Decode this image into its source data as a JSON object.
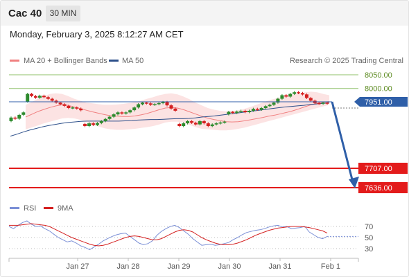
{
  "header": {
    "instrument": "Cac 40",
    "timeframe": "30 MIN"
  },
  "datetime": "Monday, February 3, 2025 8:12:27 AM CET",
  "legend": {
    "ma_bb": "MA 20 + Bollinger Bands",
    "ma50": "MA 50",
    "credit": "Research © 2025 Trading Central"
  },
  "rsi_legend": {
    "rsi": "RSI",
    "ma9": "9MA"
  },
  "colors": {
    "ma_bb": "#f08080",
    "ma50": "#2c4f8a",
    "bull": "#2e8b2e",
    "bear": "#d42020",
    "green_level": "#8fc16a",
    "red_level": "#e31b1b",
    "arrow": "#2f5fa8",
    "rsi": "#7a8fd6"
  },
  "chart_data": {
    "type": "candlestick",
    "instrument": "Cac 40",
    "interval": "30 MIN",
    "x_ticks": [
      "Jan 27",
      "Jan 28",
      "Jan 29",
      "Jan 30",
      "Jan 31",
      "Feb 1"
    ],
    "price_levels": [
      {
        "label": "8050.00",
        "value": 8050,
        "kind": "resistance"
      },
      {
        "label": "8000.00",
        "value": 8000,
        "kind": "resistance"
      },
      {
        "label": "7951.00",
        "value": 7951,
        "kind": "current"
      },
      {
        "label": "7707.00",
        "value": 7707,
        "kind": "target"
      },
      {
        "label": "7636.00",
        "value": 7636,
        "kind": "target"
      }
    ],
    "projection": {
      "from": 7951,
      "to": 7636,
      "direction": "down"
    },
    "candles": [
      {
        "o": 7880,
        "c": 7893
      },
      {
        "o": 7893,
        "c": 7889
      },
      {
        "o": 7889,
        "c": 7903
      },
      {
        "o": 7903,
        "c": 7912
      },
      {
        "o": 7952,
        "c": 7980
      },
      {
        "o": 7980,
        "c": 7972
      },
      {
        "o": 7972,
        "c": 7966
      },
      {
        "o": 7966,
        "c": 7973
      },
      {
        "o": 7973,
        "c": 7968
      },
      {
        "o": 7968,
        "c": 7962
      },
      {
        "o": 7962,
        "c": 7955
      },
      {
        "o": 7955,
        "c": 7948
      },
      {
        "o": 7948,
        "c": 7942
      },
      {
        "o": 7942,
        "c": 7936
      },
      {
        "o": 7936,
        "c": 7928
      },
      {
        "o": 7928,
        "c": 7930
      },
      {
        "o": 7930,
        "c": 7926
      },
      {
        "o": 7926,
        "c": 7920
      },
      {
        "o": 7870,
        "c": 7862
      },
      {
        "o": 7862,
        "c": 7872
      },
      {
        "o": 7872,
        "c": 7866
      },
      {
        "o": 7866,
        "c": 7873
      },
      {
        "o": 7873,
        "c": 7880
      },
      {
        "o": 7880,
        "c": 7888
      },
      {
        "o": 7888,
        "c": 7896
      },
      {
        "o": 7896,
        "c": 7905
      },
      {
        "o": 7905,
        "c": 7912
      },
      {
        "o": 7912,
        "c": 7908
      },
      {
        "o": 7908,
        "c": 7912
      },
      {
        "o": 7912,
        "c": 7920
      },
      {
        "o": 7920,
        "c": 7930
      },
      {
        "o": 7930,
        "c": 7942
      },
      {
        "o": 7942,
        "c": 7948
      },
      {
        "o": 7948,
        "c": 7945
      },
      {
        "o": 7945,
        "c": 7940
      },
      {
        "o": 7940,
        "c": 7942
      },
      {
        "o": 7942,
        "c": 7946
      },
      {
        "o": 7946,
        "c": 7950
      },
      {
        "o": 7950,
        "c": 7938
      },
      {
        "o": 7938,
        "c": 7926
      },
      {
        "o": 7926,
        "c": 7918
      },
      {
        "o": 7870,
        "c": 7862
      },
      {
        "o": 7862,
        "c": 7872
      },
      {
        "o": 7872,
        "c": 7880
      },
      {
        "o": 7880,
        "c": 7874
      },
      {
        "o": 7874,
        "c": 7868
      },
      {
        "o": 7868,
        "c": 7880
      },
      {
        "o": 7880,
        "c": 7872
      },
      {
        "o": 7872,
        "c": 7862
      },
      {
        "o": 7862,
        "c": 7868
      },
      {
        "o": 7868,
        "c": 7872
      },
      {
        "o": 7872,
        "c": 7875
      },
      {
        "o": 7875,
        "c": 7878
      },
      {
        "o": 7905,
        "c": 7914
      },
      {
        "o": 7914,
        "c": 7910
      },
      {
        "o": 7910,
        "c": 7915
      },
      {
        "o": 7915,
        "c": 7918
      },
      {
        "o": 7918,
        "c": 7913
      },
      {
        "o": 7913,
        "c": 7918
      },
      {
        "o": 7918,
        "c": 7925
      },
      {
        "o": 7925,
        "c": 7922
      },
      {
        "o": 7922,
        "c": 7928
      },
      {
        "o": 7928,
        "c": 7935
      },
      {
        "o": 7935,
        "c": 7940
      },
      {
        "o": 7940,
        "c": 7948
      },
      {
        "o": 7948,
        "c": 7962
      },
      {
        "o": 7962,
        "c": 7975
      },
      {
        "o": 7975,
        "c": 7970
      },
      {
        "o": 7970,
        "c": 7980
      },
      {
        "o": 7980,
        "c": 7986
      },
      {
        "o": 7986,
        "c": 7983
      },
      {
        "o": 7983,
        "c": 7978
      },
      {
        "o": 7978,
        "c": 7965
      },
      {
        "o": 7965,
        "c": 7955
      },
      {
        "o": 7955,
        "c": 7946
      },
      {
        "o": 7946,
        "c": 7944
      },
      {
        "o": 7944,
        "c": 7948
      },
      {
        "o": 7948,
        "c": 7944
      }
    ],
    "ma20": [
      7895,
      7905,
      7915,
      7923,
      7930,
      7936,
      7940,
      7938,
      7932,
      7926,
      7920,
      7914,
      7909,
      7904,
      7900,
      7898,
      7897,
      7897,
      7899,
      7903,
      7908,
      7915,
      7922,
      7928,
      7930,
      7928,
      7922,
      7914,
      7906,
      7898,
      7891,
      7886,
      7882,
      7878,
      7877,
      7878,
      7881,
      7885,
      7889,
      7893,
      7898,
      7902,
      7907,
      7912,
      7918,
      7925,
      7933,
      7940,
      7946,
      7950,
      7952
    ],
    "ma50": [
      7825,
      7832,
      7840,
      7847,
      7853,
      7859,
      7864,
      7868,
      7872,
      7875,
      7877,
      7879,
      7880,
      7880,
      7880,
      7880,
      7880,
      7880,
      7881,
      7882,
      7884,
      7885,
      7886,
      7886,
      7887,
      7888,
      7889,
      7889,
      7890,
      7892,
      7895,
      7897,
      7899,
      7902,
      7905,
      7908,
      7911,
      7914,
      7917,
      7920,
      7923,
      7926,
      7929,
      7932,
      7934,
      7936,
      7938,
      7941,
      7943,
      7945,
      7948
    ],
    "bb_upper": [
      7940,
      7950,
      7962,
      7972,
      7980,
      7982,
      7980,
      7972,
      7962,
      7955,
      7948,
      7945,
      7942,
      7940,
      7940,
      7941,
      7943,
      7946,
      7950,
      7955,
      7962,
      7968,
      7975,
      7980,
      7982,
      7978,
      7970,
      7960,
      7948,
      7938,
      7928,
      7922,
      7918,
      7916,
      7917,
      7920,
      7925,
      7932,
      7940,
      7948,
      7956,
      7962,
      7968,
      7973,
      7978,
      7982,
      7986,
      7988,
      7986,
      7980,
      7975
    ],
    "bb_lower": [
      7850,
      7857,
      7864,
      7872,
      7878,
      7884,
      7890,
      7892,
      7890,
      7885,
      7876,
      7868,
      7860,
      7854,
      7850,
      7848,
      7848,
      7850,
      7852,
      7855,
      7858,
      7862,
      7868,
      7875,
      7878,
      7878,
      7874,
      7866,
      7858,
      7852,
      7850,
      7848,
      7846,
      7846,
      7848,
      7852,
      7856,
      7862,
      7868,
      7874,
      7880,
      7886,
      7892,
      7898,
      7904,
      7910,
      7916,
      7922,
      7928,
      7934,
      7940
    ],
    "rsi": {
      "ticks": [
        "70",
        "50",
        "30"
      ],
      "rsi_values": [
        70,
        66,
        72,
        77,
        80,
        74,
        70,
        71,
        66,
        62,
        56,
        50,
        46,
        42,
        44,
        40,
        35,
        32,
        28,
        33,
        38,
        44,
        48,
        52,
        55,
        57,
        58,
        52,
        46,
        40,
        37,
        39,
        44,
        54,
        61,
        66,
        70,
        72,
        68,
        62,
        56,
        48,
        42,
        36,
        37,
        38,
        36,
        37,
        39,
        41,
        46,
        50,
        55,
        59,
        61,
        63,
        64,
        66,
        69,
        71,
        72,
        69,
        70,
        66,
        67,
        68,
        70,
        60,
        55,
        50,
        48,
        52
      ],
      "ma9_values": [
        72,
        72,
        72,
        73,
        74,
        75,
        74,
        73,
        72,
        70,
        66,
        62,
        58,
        54,
        50,
        47,
        44,
        41,
        38,
        36,
        35,
        36,
        38,
        41,
        44,
        47,
        50,
        52,
        53,
        52,
        50,
        48,
        46,
        46,
        48,
        52,
        56,
        60,
        63,
        64,
        63,
        60,
        55,
        50,
        46,
        43,
        40,
        38,
        37,
        37,
        38,
        40,
        43,
        46,
        50,
        54,
        57,
        60,
        63,
        65,
        67,
        68,
        69,
        70,
        70,
        70,
        69,
        68,
        66,
        64,
        62,
        58
      ]
    }
  }
}
